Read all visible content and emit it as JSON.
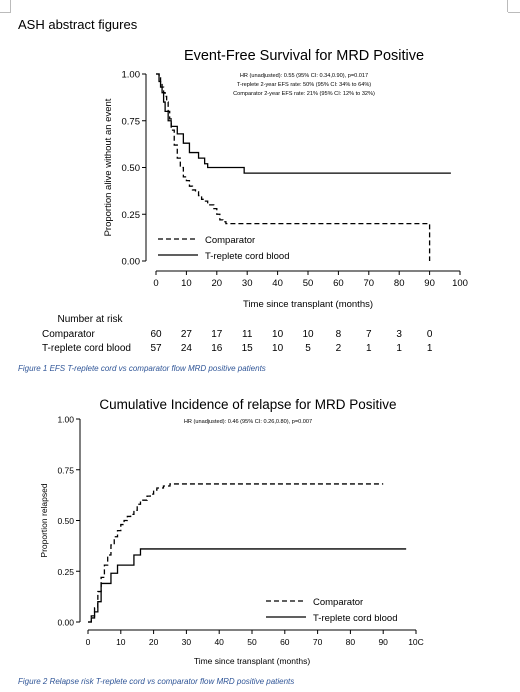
{
  "document": {
    "heading": "ASH abstract figures",
    "caption1": "Figure 1 EFS T-replete cord vs comparator flow MRD positive patients",
    "caption2": "Figure 2 Relapse risk T-replete cord vs comparator flow MRD positive patients"
  },
  "chart_data": [
    {
      "type": "line",
      "title": "Event-Free Survival for MRD Positive",
      "annotations": [
        "HR (unadjusted): 0.55 (95% CI: 0.34,0.90), p=0.017",
        "T-replete 2-year EFS rate: 50% (95% CI: 34% to 64%)",
        "Comparator 2-year EFS rate: 21% (95% CI: 12% to 32%)"
      ],
      "xlabel": "Time since transplant (months)",
      "ylabel": "Proportion alive without an event",
      "xlim": [
        0,
        100
      ],
      "ylim": [
        0,
        1
      ],
      "xticks": [
        "0",
        "10",
        "20",
        "30",
        "40",
        "50",
        "60",
        "70",
        "80",
        "90",
        "100"
      ],
      "yticks": [
        "0.00",
        "0.25",
        "0.50",
        "0.75",
        "1.00"
      ],
      "legend": [
        "Comparator",
        "T-replete cord blood"
      ],
      "series": [
        {
          "name": "Comparator",
          "style": "dashed",
          "x": [
            0,
            1,
            1.5,
            2,
            2.5,
            3,
            3.5,
            4,
            4.5,
            5,
            6,
            7,
            8,
            9,
            10,
            11,
            12,
            13,
            14,
            15,
            16,
            17,
            18,
            19,
            20,
            21,
            22,
            23,
            24,
            25,
            89,
            90
          ],
          "y": [
            1.0,
            0.98,
            0.95,
            0.93,
            0.9,
            0.88,
            0.85,
            0.8,
            0.76,
            0.7,
            0.62,
            0.55,
            0.5,
            0.45,
            0.43,
            0.4,
            0.38,
            0.37,
            0.35,
            0.33,
            0.32,
            0.3,
            0.3,
            0.28,
            0.25,
            0.22,
            0.21,
            0.2,
            0.2,
            0.2,
            0.2,
            0.0
          ]
        },
        {
          "name": "T-replete cord blood",
          "style": "solid",
          "x": [
            0,
            1,
            1.5,
            2,
            2.5,
            3,
            4,
            5,
            7,
            9,
            11,
            14,
            16,
            17,
            28,
            29,
            97
          ],
          "y": [
            1.0,
            0.96,
            0.93,
            0.9,
            0.85,
            0.8,
            0.75,
            0.72,
            0.68,
            0.63,
            0.58,
            0.55,
            0.52,
            0.5,
            0.5,
            0.47,
            0.47
          ]
        }
      ],
      "risk_table": {
        "title": "Number at risk",
        "times": [
          0,
          10,
          20,
          30,
          40,
          50,
          60,
          70,
          80,
          90
        ],
        "rows": [
          {
            "name": "Comparator",
            "values": [
              "60",
              "27",
              "17",
              "11",
              "10",
              "10",
              "8",
              "7",
              "3",
              "0"
            ]
          },
          {
            "name": "T-replete cord blood",
            "values": [
              "57",
              "24",
              "16",
              "15",
              "10",
              "5",
              "2",
              "1",
              "1",
              "1"
            ]
          }
        ]
      }
    },
    {
      "type": "line",
      "title": "Cumulative Incidence of relapse for MRD Positive",
      "annotations": [
        "HR (unadjusted): 0.46 (95% CI: 0.26,0.80), p=0.007"
      ],
      "xlabel": "Time since transplant (months)",
      "ylabel": "Proportion relapsed",
      "xlim": [
        0,
        100
      ],
      "ylim": [
        0,
        1
      ],
      "xticks": [
        "0",
        "10",
        "20",
        "30",
        "40",
        "50",
        "60",
        "70",
        "80",
        "90",
        "10C"
      ],
      "yticks": [
        "0.00",
        "0.25",
        "0.50",
        "0.75",
        "1.00"
      ],
      "legend": [
        "Comparator",
        "T-replete cord blood"
      ],
      "series": [
        {
          "name": "Comparator",
          "style": "dashed",
          "x": [
            0,
            1,
            2,
            3,
            4,
            5,
            6,
            7,
            8,
            9,
            10,
            11,
            12,
            13,
            14,
            15,
            16,
            17,
            18,
            19,
            20,
            21,
            22,
            23,
            24,
            25,
            26,
            90
          ],
          "y": [
            0.0,
            0.03,
            0.07,
            0.15,
            0.22,
            0.28,
            0.33,
            0.38,
            0.42,
            0.45,
            0.48,
            0.5,
            0.52,
            0.53,
            0.55,
            0.58,
            0.6,
            0.6,
            0.62,
            0.63,
            0.65,
            0.66,
            0.66,
            0.67,
            0.67,
            0.68,
            0.68,
            0.68
          ]
        },
        {
          "name": "T-replete cord blood",
          "style": "solid",
          "x": [
            0,
            1,
            2,
            3,
            4,
            5,
            7,
            9,
            11,
            13,
            14,
            15,
            16,
            97
          ],
          "y": [
            0.0,
            0.02,
            0.05,
            0.1,
            0.19,
            0.19,
            0.24,
            0.28,
            0.28,
            0.28,
            0.33,
            0.33,
            0.36,
            0.36
          ]
        }
      ]
    }
  ]
}
